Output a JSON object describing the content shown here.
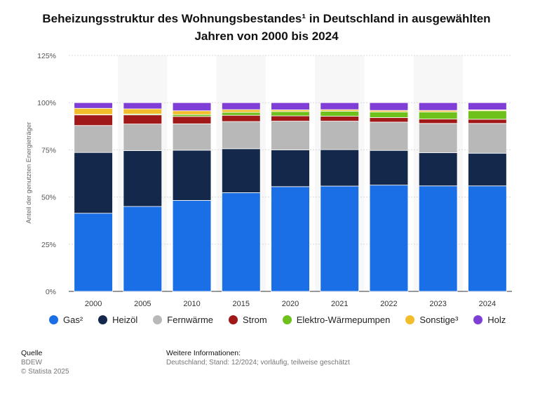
{
  "title": "Beheizungsstruktur des Wohnungsbestandes¹ in Deutschland in ausgewählten Jahren von 2000 bis 2024",
  "footer": {
    "source_heading": "Quelle",
    "source": "BDEW",
    "copyright": "© Statista 2025",
    "info_heading": "Weitere Informationen:",
    "info": "Deutschland; Stand: 12/2024; vorläufig, teilweise geschätzt"
  },
  "chart_data": {
    "type": "bar",
    "stacked": true,
    "categories": [
      "2000",
      "2005",
      "2010",
      "2015",
      "2020",
      "2021",
      "2022",
      "2023",
      "2024"
    ],
    "ylabel": "Anteil der genutzten Energieträger",
    "ylim": [
      0,
      125
    ],
    "yticks": [
      "0%",
      "25%",
      "50%",
      "75%",
      "100%",
      "125%"
    ],
    "grid": true,
    "legend_position": "bottom",
    "series": [
      {
        "name": "Gas²",
        "color": "#1a6ee6",
        "values": [
          41.4,
          45.0,
          48.2,
          52.3,
          55.5,
          55.8,
          56.3,
          55.9,
          55.9
        ]
      },
      {
        "name": "Heizöl",
        "color": "#13284a",
        "values": [
          32.2,
          29.6,
          26.6,
          23.3,
          19.5,
          19.3,
          18.4,
          17.6,
          17.3
        ]
      },
      {
        "name": "Fernwärme",
        "color": "#b8b8b8",
        "values": [
          14.3,
          14.1,
          14.0,
          14.4,
          15.2,
          15.1,
          15.0,
          15.5,
          15.8
        ]
      },
      {
        "name": "Strom",
        "color": "#a01818",
        "values": [
          5.6,
          4.8,
          3.9,
          3.3,
          2.8,
          2.6,
          2.4,
          2.3,
          2.2
        ]
      },
      {
        "name": "Elektro-Wärmepumpen",
        "color": "#6ec11a",
        "values": [
          0.2,
          0.5,
          1.0,
          1.6,
          2.3,
          2.7,
          3.0,
          3.8,
          4.5
        ]
      },
      {
        "name": "Sonstige³",
        "color": "#f2bd2a",
        "values": [
          3.3,
          2.7,
          2.0,
          1.4,
          0.9,
          0.8,
          0.8,
          0.8,
          0.5
        ]
      },
      {
        "name": "Holz",
        "color": "#7f3fd6",
        "values": [
          3.0,
          3.3,
          4.3,
          3.7,
          3.8,
          3.7,
          4.1,
          4.1,
          3.8
        ]
      }
    ]
  }
}
